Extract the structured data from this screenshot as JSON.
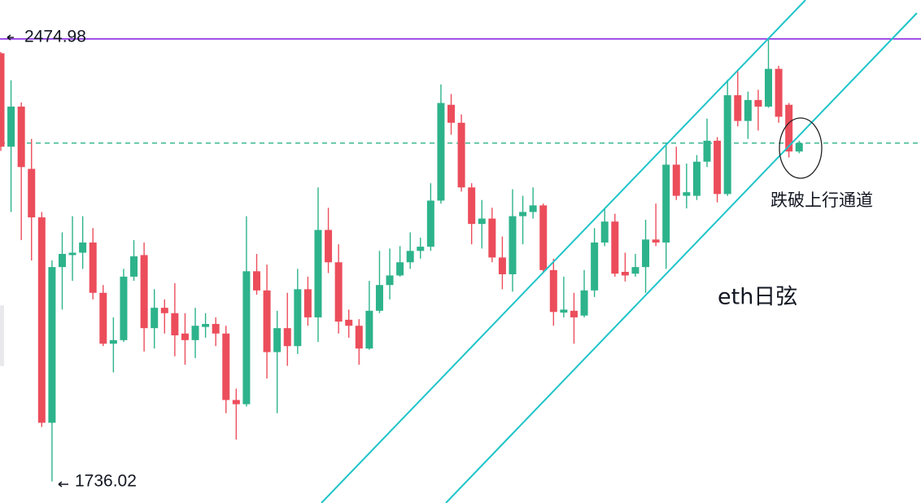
{
  "chart_data": {
    "type": "candlestick",
    "ylim": [
      1700,
      2540
    ],
    "up_color": "#2db38b",
    "down_color": "#ec4d5b",
    "high_marker": 2474.98,
    "low_marker": 1736.02,
    "resistance_color": "#8a2be2",
    "dashed_level": 2301,
    "dashed_color": "#2db38b",
    "annotations": [
      {
        "text": "跌破上行通道"
      },
      {
        "text": "eth日弦"
      }
    ],
    "ohlc": [
      [
        2451,
        2453,
        2288,
        2295
      ],
      [
        2295,
        2406,
        2186,
        2362
      ],
      [
        2362,
        2369,
        2139,
        2261
      ],
      [
        2258,
        2308,
        2105,
        2177
      ],
      [
        2177,
        2186,
        1827,
        1834
      ],
      [
        1834,
        2105,
        1736.02,
        2094
      ],
      [
        2094,
        2152,
        2023,
        2116
      ],
      [
        2114,
        2179,
        2071,
        2118
      ],
      [
        2118,
        2179,
        2091,
        2135
      ],
      [
        2135,
        2159,
        2040,
        2051
      ],
      [
        2051,
        2064,
        1962,
        1966
      ],
      [
        1966,
        2010,
        1918,
        1972
      ],
      [
        1972,
        2091,
        1969,
        2078
      ],
      [
        2078,
        2139,
        2071,
        2112
      ],
      [
        2114,
        2135,
        1953,
        1992
      ],
      [
        1992,
        2057,
        1958,
        2026
      ],
      [
        2026,
        2040,
        1983,
        2017
      ],
      [
        2017,
        2067,
        1945,
        1980
      ],
      [
        1983,
        2017,
        1931,
        1972
      ],
      [
        1972,
        2026,
        1942,
        1996
      ],
      [
        1994,
        2017,
        1976,
        1999
      ],
      [
        1999,
        2010,
        1962,
        1983
      ],
      [
        1983,
        1996,
        1850,
        1872
      ],
      [
        1872,
        1891,
        1806,
        1865
      ],
      [
        1865,
        2179,
        1861,
        2087
      ],
      [
        2087,
        2116,
        2048,
        2055
      ],
      [
        2055,
        2098,
        1908,
        1952
      ],
      [
        1952,
        2021,
        1850,
        1992
      ],
      [
        1992,
        2051,
        1929,
        1962
      ],
      [
        1962,
        2091,
        1949,
        2057
      ],
      [
        2057,
        2078,
        1996,
        2010
      ],
      [
        2010,
        2227,
        1969,
        2156
      ],
      [
        2156,
        2193,
        2084,
        2102
      ],
      [
        2102,
        2132,
        1983,
        2003
      ],
      [
        2006,
        2023,
        1976,
        1996
      ],
      [
        1996,
        2007,
        1931,
        1958
      ],
      [
        1958,
        2071,
        1956,
        2021
      ],
      [
        2021,
        2121,
        2017,
        2064
      ],
      [
        2064,
        2125,
        2040,
        2080
      ],
      [
        2080,
        2129,
        2078,
        2102
      ],
      [
        2102,
        2152,
        2091,
        2121
      ],
      [
        2121,
        2143,
        2108,
        2128
      ],
      [
        2128,
        2234,
        2121,
        2205
      ],
      [
        2205,
        2399,
        2200,
        2368
      ],
      [
        2365,
        2383,
        2315,
        2335
      ],
      [
        2335,
        2349,
        2220,
        2227
      ],
      [
        2227,
        2234,
        2132,
        2166
      ],
      [
        2166,
        2206,
        2125,
        2175
      ],
      [
        2175,
        2193,
        2102,
        2110
      ],
      [
        2110,
        2145,
        2057,
        2082
      ],
      [
        2082,
        2224,
        2053,
        2179
      ],
      [
        2179,
        2213,
        2132,
        2186
      ],
      [
        2186,
        2227,
        2175,
        2197
      ],
      [
        2197,
        2200,
        2084,
        2089
      ],
      [
        2089,
        2108,
        1996,
        2019
      ],
      [
        2018,
        2078,
        2010,
        2023
      ],
      [
        2021,
        2051,
        1966,
        2010
      ],
      [
        2013,
        2089,
        2010,
        2055
      ],
      [
        2055,
        2159,
        2044,
        2135
      ],
      [
        2135,
        2193,
        2129,
        2170
      ],
      [
        2170,
        2183,
        2078,
        2083
      ],
      [
        2086,
        2118,
        2070,
        2080
      ],
      [
        2083,
        2116,
        2078,
        2094
      ],
      [
        2094,
        2173,
        2051,
        2140
      ],
      [
        2140,
        2200,
        2129,
        2135
      ],
      [
        2135,
        2301,
        2091,
        2265
      ],
      [
        2265,
        2295,
        2206,
        2213
      ],
      [
        2213,
        2267,
        2192,
        2219
      ],
      [
        2213,
        2281,
        2206,
        2270
      ],
      [
        2270,
        2342,
        2261,
        2305
      ],
      [
        2305,
        2311,
        2202,
        2216
      ],
      [
        2216,
        2407,
        2213,
        2381
      ],
      [
        2381,
        2423,
        2329,
        2338
      ],
      [
        2338,
        2387,
        2308,
        2373
      ],
      [
        2373,
        2390,
        2322,
        2362
      ],
      [
        2362,
        2474.98,
        2360,
        2425
      ],
      [
        2425,
        2430,
        2335,
        2345
      ],
      [
        2365,
        2368,
        2277,
        2287
      ],
      [
        2287,
        2305,
        2284,
        2301
      ]
    ]
  }
}
